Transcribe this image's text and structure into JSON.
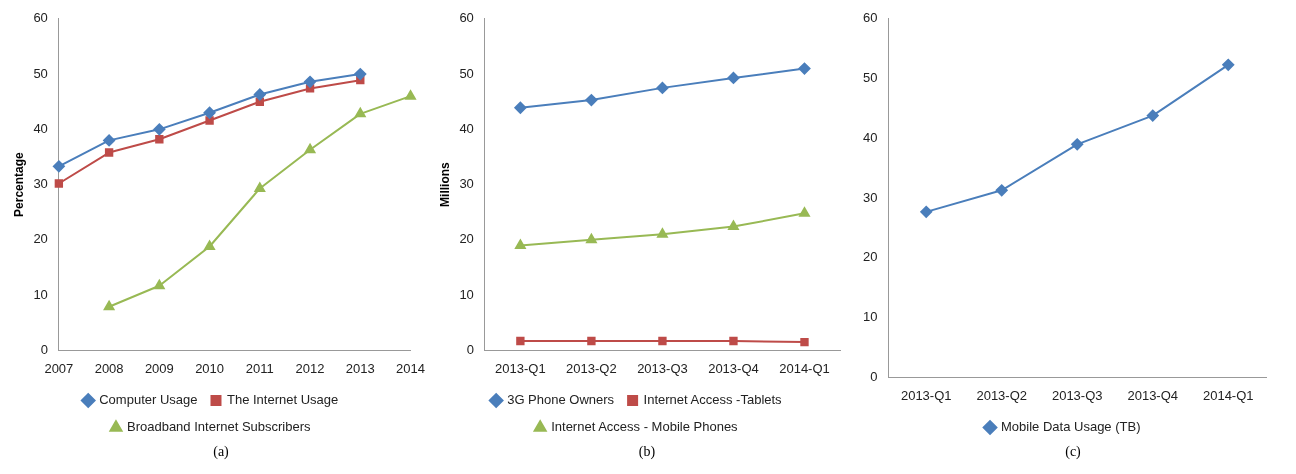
{
  "chart_data": [
    {
      "type": "line",
      "categories": [
        "2007",
        "2008",
        "2009",
        "2010",
        "2011",
        "2012",
        "2013",
        "2014"
      ],
      "ylabel": "Percentage",
      "ylim": [
        0,
        60
      ],
      "yticks": [
        0,
        10,
        20,
        30,
        40,
        50,
        60
      ],
      "grid": false,
      "legend": "bottom",
      "annotations": [
        "(a)"
      ],
      "series": [
        {
          "name": "Computer Usage",
          "color": "#4a7ebb",
          "marker": "diamond",
          "values": [
            33.3,
            38,
            40,
            43,
            46.3,
            48.6,
            50,
            null
          ]
        },
        {
          "name": "The Internet Usage",
          "color": "#be4b48",
          "marker": "square",
          "values": [
            30.2,
            35.8,
            38.2,
            41.6,
            45,
            47.4,
            48.9,
            null
          ]
        },
        {
          "name": "Broadband Internet Subscribers",
          "color": "#98b954",
          "marker": "triangle",
          "values": [
            null,
            7.9,
            11.7,
            18.8,
            29.3,
            36.3,
            42.8,
            46
          ]
        }
      ]
    },
    {
      "type": "line",
      "categories": [
        "2013-Q1",
        "2013-Q2",
        "2013-Q3",
        "2013-Q4",
        "2014-Q1"
      ],
      "ylabel": "Millions",
      "ylim": [
        0,
        60
      ],
      "yticks": [
        0,
        10,
        20,
        30,
        40,
        50,
        60
      ],
      "grid": false,
      "legend": "bottom",
      "annotations": [
        "(b)"
      ],
      "series": [
        {
          "name": "3G Phone Owners",
          "color": "#4a7ebb",
          "marker": "diamond",
          "values": [
            43.9,
            45.3,
            47.5,
            49.3,
            51
          ]
        },
        {
          "name": "Internet Access -Tablets",
          "color": "#be4b48",
          "marker": "square",
          "values": [
            1.7,
            1.7,
            1.7,
            1.7,
            1.5
          ]
        },
        {
          "name": "Internet Access - Mobile Phones",
          "color": "#98b954",
          "marker": "triangle",
          "values": [
            19,
            20,
            21,
            22.4,
            24.8
          ]
        }
      ]
    },
    {
      "type": "line",
      "categories": [
        "2013-Q1",
        "2013-Q2",
        "2013-Q3",
        "2013-Q4",
        "2014-Q1"
      ],
      "ylim": [
        0,
        60
      ],
      "yticks": [
        0,
        10,
        20,
        30,
        40,
        50,
        60
      ],
      "grid": false,
      "legend": "bottom",
      "annotations": [
        "(c)"
      ],
      "series": [
        {
          "name": "Mobile Data Usage (TB)",
          "color": "#4a7ebb",
          "marker": "diamond",
          "values": [
            27.7,
            31.3,
            39,
            43.8,
            52.3
          ]
        }
      ]
    }
  ]
}
